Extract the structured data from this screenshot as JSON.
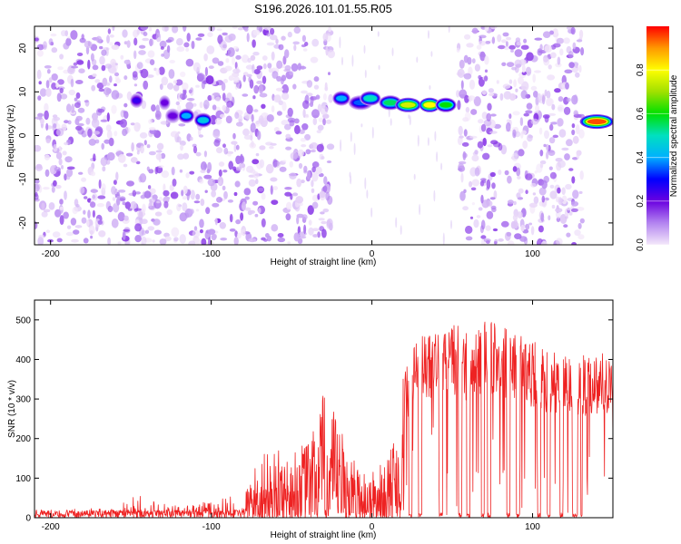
{
  "title": "S196.2026.101.01.55.R05",
  "chart_data": [
    {
      "type": "heatmap",
      "id": "spectrogram",
      "xlabel": "Height of straight line (km)",
      "ylabel": "Frequency (Hz)",
      "xlim": [
        -210,
        150
      ],
      "ylim": [
        -25,
        25
      ],
      "xticks": [
        -200,
        -100,
        0,
        100
      ],
      "xtick_labels": [
        "-200",
        "-100",
        "0",
        "100"
      ],
      "yticks": [
        -20,
        -10,
        0,
        10,
        20
      ],
      "ytick_labels": [
        "-20",
        "-10",
        "0",
        "10",
        "20"
      ],
      "colorbar": {
        "label": "Normalized spectral amplitude",
        "range": [
          0,
          1
        ],
        "ticks": [
          0.0,
          0.2,
          0.4,
          0.6,
          0.8
        ],
        "tick_labels": [
          "0.0",
          "0.2",
          "0.4",
          "0.6",
          "0.8"
        ],
        "colors": [
          "#f4e8fa",
          "#b384f0",
          "#6a00e0",
          "#0000ff",
          "#00b0ff",
          "#00e0c0",
          "#00e000",
          "#a0e000",
          "#ffff00",
          "#ff9900",
          "#ff0000"
        ]
      },
      "noise_regions": [
        [
          -210,
          -25
        ],
        [
          53,
          131
        ]
      ],
      "quiet_regions": [
        [
          -25,
          53
        ],
        [
          131,
          150
        ]
      ],
      "features": [
        {
          "x": [
            -150,
            -143
          ],
          "freq": 8.0,
          "amplitude": 0.25
        },
        {
          "x": [
            -132,
            -126
          ],
          "freq": 7.5,
          "amplitude": 0.2
        },
        {
          "x": [
            -128,
            -120
          ],
          "freq": 4.5,
          "amplitude": 0.2
        },
        {
          "x": [
            -120,
            -111
          ],
          "freq": 4.5,
          "amplitude": 0.4
        },
        {
          "x": [
            -110,
            -100
          ],
          "freq": 3.5,
          "amplitude": 0.45
        },
        {
          "x": [
            -24,
            -14
          ],
          "freq": 8.5,
          "amplitude": 0.4
        },
        {
          "x": [
            -14,
            0
          ],
          "freq": 7.5,
          "amplitude": 0.35
        },
        {
          "x": [
            -7,
            5
          ],
          "freq": 8.5,
          "amplitude": 0.5
        },
        {
          "x": [
            5,
            18
          ],
          "freq": 7.5,
          "amplitude": 0.55
        },
        {
          "x": [
            15,
            30
          ],
          "freq": 7.0,
          "amplitude": 0.75
        },
        {
          "x": [
            30,
            42
          ],
          "freq": 7.0,
          "amplitude": 0.8
        },
        {
          "x": [
            40,
            52
          ],
          "freq": 7.0,
          "amplitude": 0.6
        },
        {
          "x": [
            130,
            150
          ],
          "freq": 3.2,
          "amplitude": 0.95
        }
      ]
    },
    {
      "type": "line",
      "id": "snr",
      "xlabel": "Height of straight line (km)",
      "ylabel": "SNR (10 * v/v)",
      "xlim": [
        -210,
        150
      ],
      "ylim": [
        0,
        550
      ],
      "xticks": [
        -200,
        -100,
        0,
        100
      ],
      "xtick_labels": [
        "-200",
        "-100",
        "0",
        "100"
      ],
      "yticks": [
        0,
        100,
        200,
        300,
        400,
        500
      ],
      "ytick_labels": [
        "0",
        "100",
        "200",
        "300",
        "400",
        "500"
      ],
      "color": "#ee2222",
      "envelope": {
        "x": [
          -210,
          -160,
          -150,
          -120,
          -100,
          -80,
          -70,
          -60,
          -50,
          -40,
          -30,
          -20,
          -10,
          0,
          10,
          20,
          30,
          40,
          50,
          60,
          70,
          80,
          90,
          100,
          110,
          120,
          130,
          140,
          150
        ],
        "y": [
          20,
          25,
          60,
          30,
          45,
          60,
          160,
          170,
          170,
          200,
          320,
          240,
          140,
          120,
          150,
          380,
          470,
          480,
          500,
          470,
          500,
          490,
          470,
          450,
          420,
          420,
          410,
          420,
          430
        ]
      },
      "dropouts": [
        [
          23,
          25
        ],
        [
          29,
          31
        ],
        [
          42,
          44
        ],
        [
          54,
          56
        ],
        [
          59,
          61
        ],
        [
          68,
          70
        ],
        [
          72,
          74
        ],
        [
          84,
          86
        ],
        [
          90,
          92
        ],
        [
          103,
          105
        ],
        [
          109,
          111
        ],
        [
          117,
          119
        ],
        [
          125,
          128
        ],
        [
          130,
          131
        ]
      ]
    }
  ]
}
